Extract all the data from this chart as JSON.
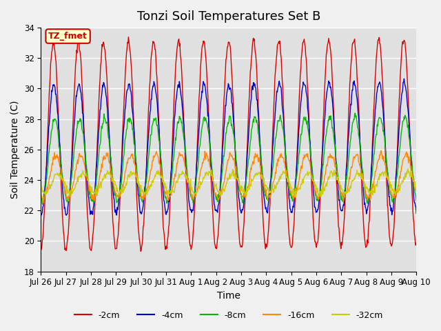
{
  "title": "Tonzi Soil Temperatures Set B",
  "xlabel": "Time",
  "ylabel": "Soil Temperature (C)",
  "ylim": [
    18,
    34
  ],
  "yticks": [
    18,
    20,
    22,
    24,
    26,
    28,
    30,
    32,
    34
  ],
  "xtick_labels": [
    "Jul 26",
    "Jul 27",
    "Jul 28",
    "Jul 29",
    "Jul 30",
    "Jul 31",
    "Aug 1",
    "Aug 2",
    "Aug 3",
    "Aug 4",
    "Aug 5",
    "Aug 6",
    "Aug 7",
    "Aug 8",
    "Aug 9",
    "Aug 10"
  ],
  "annotation_text": "TZ_fmet",
  "annotation_bg": "#ffffcc",
  "annotation_border": "#cc0000",
  "lines": {
    "-2cm": {
      "color": "#dd0000",
      "amplitude": 6.8,
      "phase": 0.0,
      "mean": 26.2,
      "mean_trend": 0.018
    },
    "-4cm": {
      "color": "#0000cc",
      "amplitude": 4.2,
      "phase": 0.1,
      "mean": 26.0,
      "mean_trend": 0.014
    },
    "-8cm": {
      "color": "#00bb00",
      "amplitude": 2.7,
      "phase": 0.3,
      "mean": 25.3,
      "mean_trend": 0.01
    },
    "-16cm": {
      "color": "#ff8800",
      "amplitude": 1.4,
      "phase": 0.6,
      "mean": 24.2,
      "mean_trend": 0.005
    },
    "-32cm": {
      "color": "#cccc00",
      "amplitude": 0.65,
      "phase": 1.1,
      "mean": 23.8,
      "mean_trend": 0.001
    }
  },
  "n_points": 768,
  "days": 15,
  "background_color": "#e0e0e0",
  "grid_color": "#ffffff",
  "title_fontsize": 13,
  "label_fontsize": 10,
  "tick_fontsize": 8.5
}
